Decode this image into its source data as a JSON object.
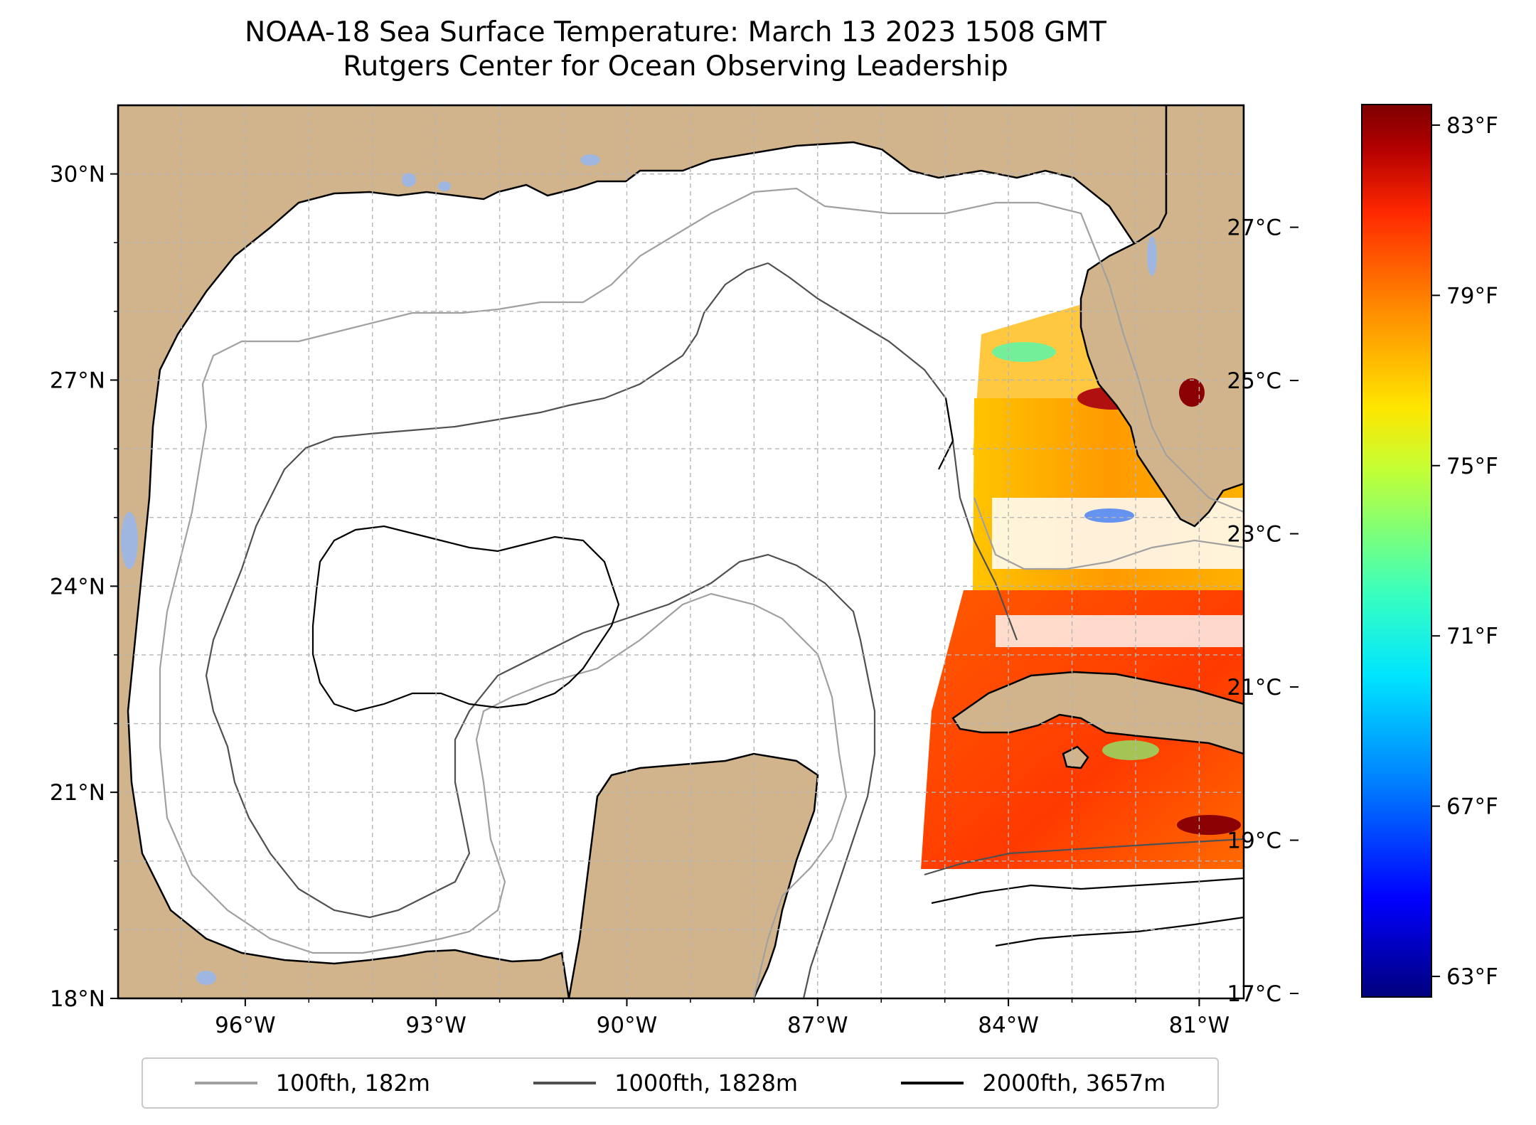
{
  "title": {
    "line1": "NOAA-18 Sea Surface Temperature: March 13 2023 1508 GMT",
    "line2": "Rutgers Center for Ocean Observing Leadership"
  },
  "map": {
    "extent": {
      "lon": [
        -98.0,
        -80.3
      ],
      "lat": [
        18.0,
        31.0
      ]
    },
    "lat_ticks": [
      {
        "value": 30,
        "label": "30°N"
      },
      {
        "value": 27,
        "label": "27°N"
      },
      {
        "value": 24,
        "label": "24°N"
      },
      {
        "value": 21,
        "label": "21°N"
      },
      {
        "value": 18,
        "label": "18°N"
      }
    ],
    "lon_ticks": [
      {
        "value": -96,
        "label": "96°W"
      },
      {
        "value": -93,
        "label": "93°W"
      },
      {
        "value": -90,
        "label": "90°W"
      },
      {
        "value": -87,
        "label": "87°W"
      },
      {
        "value": -84,
        "label": "84°W"
      },
      {
        "value": -81,
        "label": "81°W"
      }
    ],
    "grid": true,
    "colors": {
      "land": "#d2b48c",
      "water_bodies": "#9fb7e0",
      "ocean": "#ffffff",
      "coast": "#000000"
    }
  },
  "legend": {
    "placement": "bottom",
    "items": [
      {
        "label": "100fth, 182m",
        "color": "#a0a0a0"
      },
      {
        "label": "1000fth, 1828m",
        "color": "#505050"
      },
      {
        "label": "2000fth, 3657m",
        "color": "#000000"
      }
    ]
  },
  "colorbar": {
    "colormap": "jet",
    "range_f": [
      62.5,
      83.5
    ],
    "celsius_ticks": [
      {
        "value": 27,
        "label": "27°C"
      },
      {
        "value": 25,
        "label": "25°C"
      },
      {
        "value": 23,
        "label": "23°C"
      },
      {
        "value": 21,
        "label": "21°C"
      },
      {
        "value": 19,
        "label": "19°C"
      },
      {
        "value": 17,
        "label": "17°C"
      }
    ],
    "fahrenheit_ticks": [
      {
        "value": 83,
        "label": "83°F"
      },
      {
        "value": 79,
        "label": "79°F"
      },
      {
        "value": 75,
        "label": "75°F"
      },
      {
        "value": 71,
        "label": "71°F"
      },
      {
        "value": 67,
        "label": "67°F"
      },
      {
        "value": 63,
        "label": "63°F"
      }
    ]
  }
}
